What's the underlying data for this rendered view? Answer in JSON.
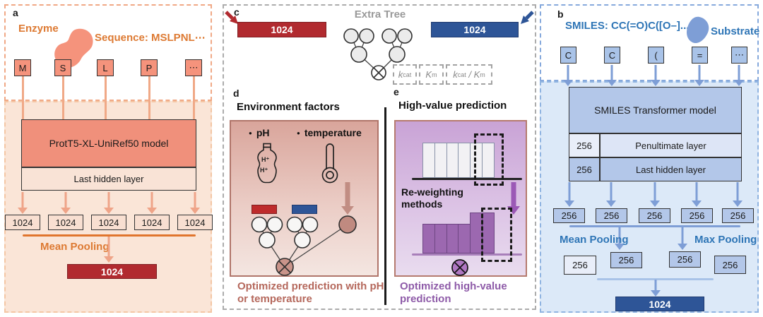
{
  "figure": {
    "panel_a": {
      "label": "a",
      "enzyme_label": "Enzyme",
      "sequence_label": "Sequence: MSLPNL⋯",
      "tokens": [
        "M",
        "S",
        "L",
        "P",
        "⋯"
      ],
      "model_name": "ProtT5-XL-UniRef50 model",
      "hidden_layer_label": "Last hidden layer",
      "token_dims": [
        "1024",
        "1024",
        "1024",
        "1024",
        "1024"
      ],
      "pooling_label": "Mean Pooling",
      "output_dim": "1024"
    },
    "panel_b": {
      "label": "b",
      "smiles_label": "SMILES: CC(=O)C([O–]...",
      "substrate_label": "Substrate",
      "tokens": [
        "C",
        "C",
        "(",
        "=",
        "⋯"
      ],
      "model_name": "SMILES Transformer model",
      "penultimate_dim": "256",
      "penultimate_label": "Penultimate layer",
      "last_hidden_dim": "256",
      "last_hidden_label": "Last hidden layer",
      "token_dims": [
        "256",
        "256",
        "256",
        "256",
        "256"
      ],
      "mean_pooling_label": "Mean Pooling",
      "max_pooling_label": "Max Pooling",
      "pooled_dims": [
        "256",
        "256",
        "256",
        "256"
      ],
      "output_dim": "1024"
    },
    "panel_c": {
      "label": "c",
      "title": "Extra Tree",
      "enzyme_vector_dim": "1024",
      "substrate_vector_dim": "1024",
      "targets": {
        "kcat": {
          "sym": "k",
          "sub": "cat"
        },
        "km": {
          "sym": "K",
          "sub": "m"
        },
        "ratio": {
          "sym1": "k",
          "sub1": "cat",
          "sep": " / ",
          "sym2": "K",
          "sub2": "m"
        }
      }
    },
    "panel_d": {
      "label": "d",
      "title": "Environment factors",
      "factor_ph": "pH",
      "factor_temperature": "temperature",
      "bottle_ion_top": "H⁺",
      "bottle_ion_bottom": "H⁺",
      "caption_line1": "Optimized prediction with pH",
      "caption_line2": "or temperature"
    },
    "panel_e": {
      "label": "e",
      "title": "High-value prediction",
      "method_line1": "Re-weighting",
      "method_line2": "methods",
      "caption_line1": "Optimized high-value",
      "caption_line2": "prediction",
      "hist_top_bar_heights": [
        50,
        50,
        50,
        50,
        50,
        50
      ],
      "hist_bottom_bar_heights": [
        42,
        42,
        42,
        42,
        58,
        58
      ]
    },
    "colors": {
      "orange_text": "#DD7A33",
      "salmon": "#F5937C",
      "peach_bg": "#FAE5D7",
      "dark_red": "#B12A2F",
      "dark_blue": "#2E5597",
      "medium_blue": "#A9C3E8",
      "light_blue_bg": "#DCE9F8",
      "blue_text": "#2E75B6",
      "gray_text": "#999999",
      "rose_text": "#B5685C",
      "purple_text": "#8E5BA8",
      "purple_bar": "#9C68B0"
    }
  }
}
